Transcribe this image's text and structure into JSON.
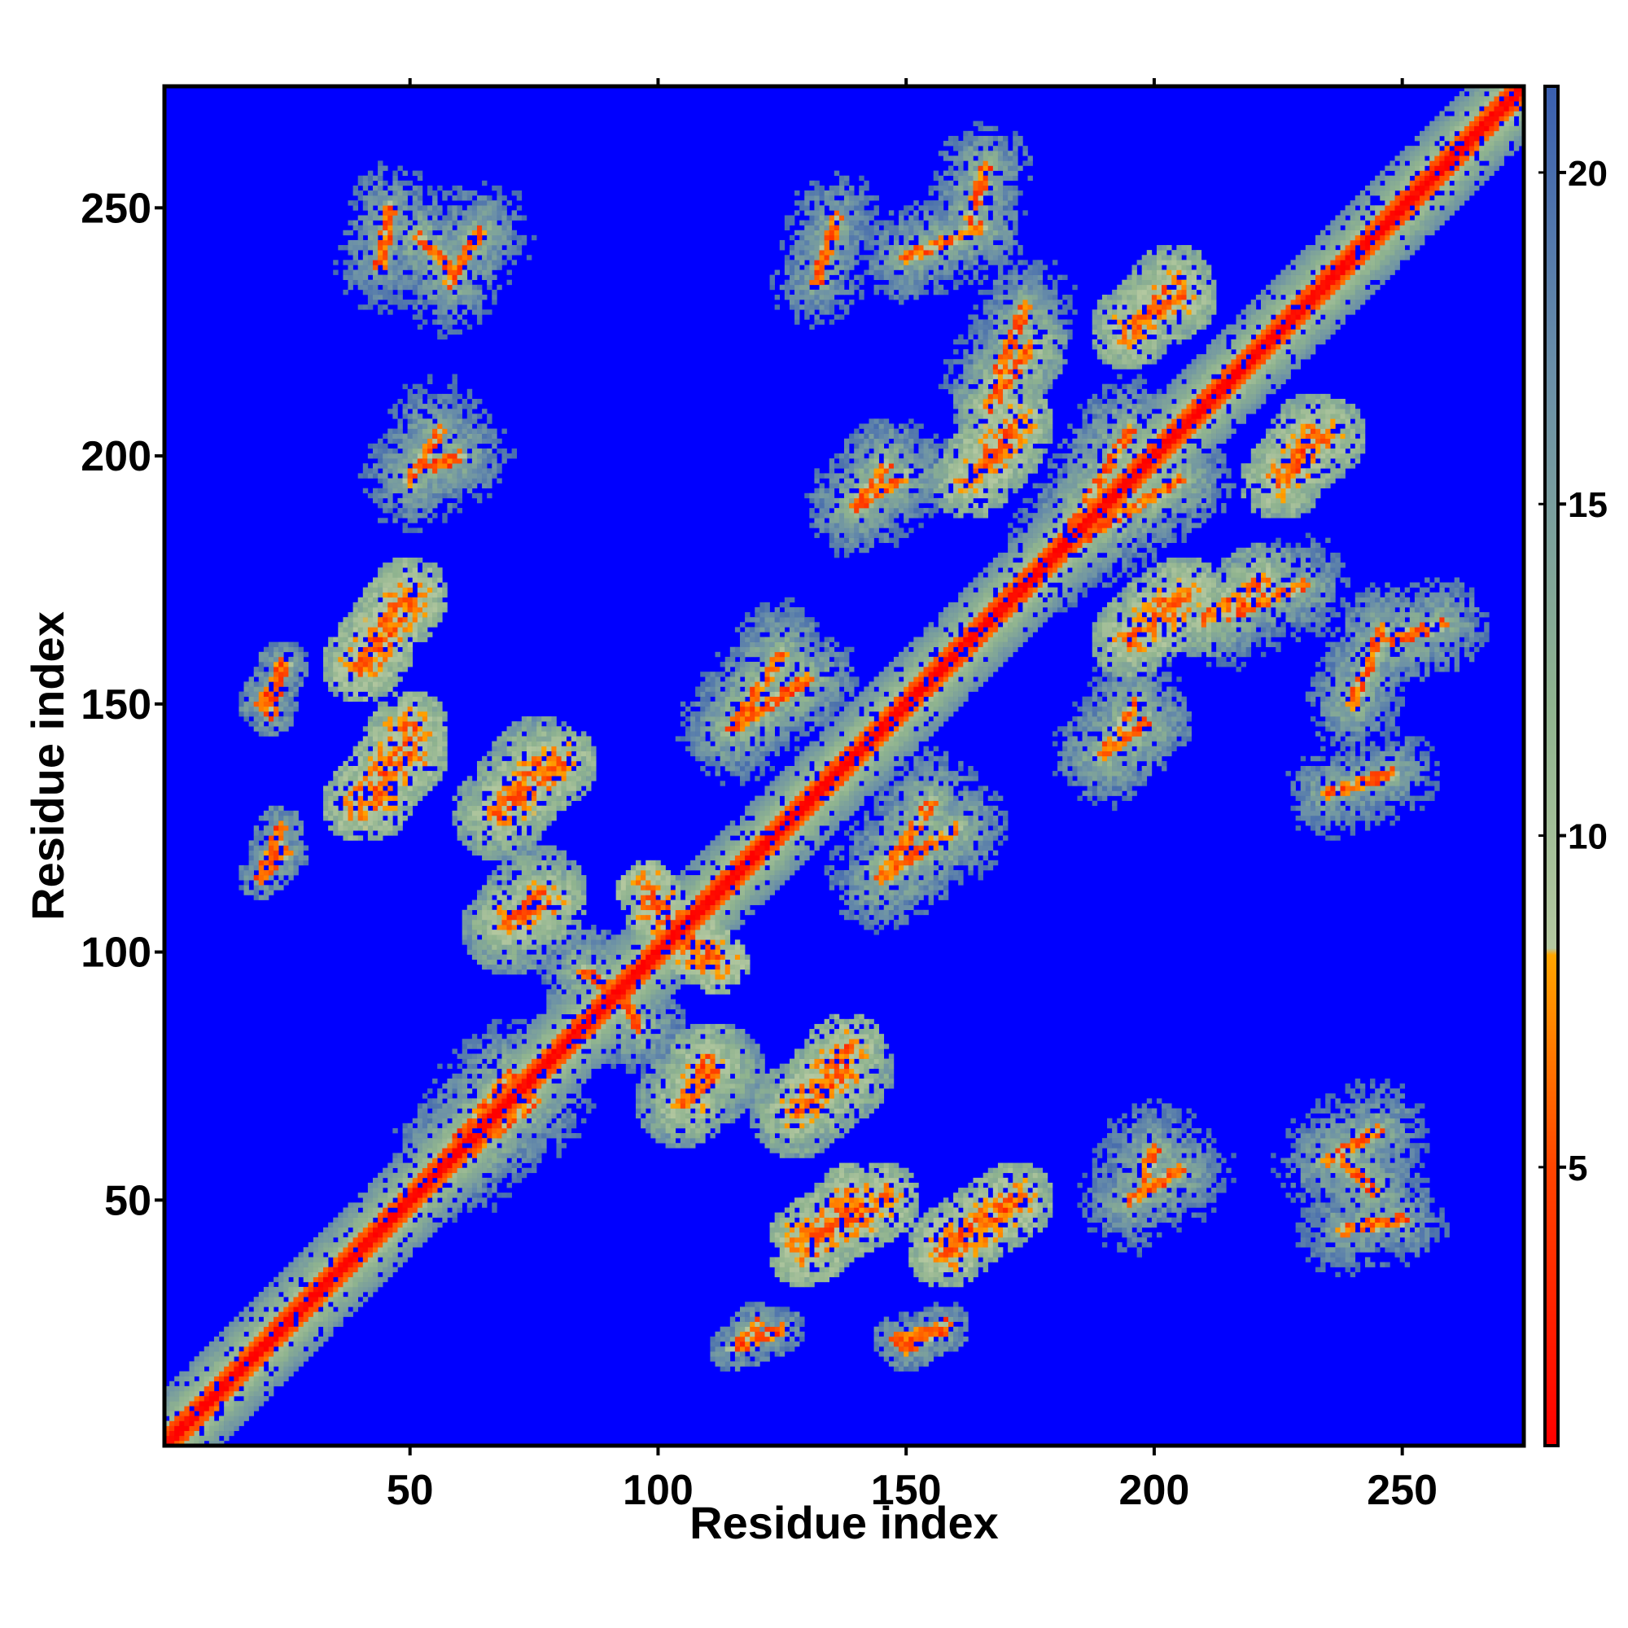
{
  "chart_data": {
    "type": "heatmap",
    "title": "",
    "xlabel": "Residue index",
    "ylabel": "Residue index",
    "n_residues": 274,
    "xlim": [
      1,
      274
    ],
    "ylim": [
      1,
      274
    ],
    "x_ticks": [
      50,
      100,
      150,
      200,
      250
    ],
    "y_ticks": [
      50,
      100,
      150,
      200,
      250
    ],
    "x_tick_labels": [
      "50",
      "100",
      "150",
      "200",
      "250"
    ],
    "y_tick_labels": [
      "50",
      "100",
      "150",
      "200",
      "250"
    ],
    "colorbar": {
      "range": [
        0.8,
        21.3
      ],
      "ticks": [
        5,
        10,
        15,
        20
      ],
      "tick_labels": [
        "5",
        "10",
        "15",
        "20"
      ],
      "stops": [
        {
          "value": 0.8,
          "color": "#ff0000"
        },
        {
          "value": 5.0,
          "color": "#ff4500"
        },
        {
          "value": 8.2,
          "color": "#ffa500"
        },
        {
          "value": 8.3,
          "color": "#b4c8a0"
        },
        {
          "value": 12.0,
          "color": "#8fb38f"
        },
        {
          "value": 17.0,
          "color": "#6a8fa8"
        },
        {
          "value": 21.3,
          "color": "#3a5fb0"
        }
      ]
    },
    "cutoff_color": "#0000ff",
    "cutoff_value": 20,
    "diagonal": {
      "from": 1,
      "to": 274,
      "value": 1.5
    },
    "contact_regions": [
      {
        "x": [
          58,
          52
        ],
        "y": [
          238,
          244
        ],
        "spread": 9,
        "value": 11.5
      },
      {
        "x": [
          55,
          60
        ],
        "y": [
          198,
          200
        ],
        "spread": 8,
        "value": 12
      },
      {
        "x": [
          40,
          50
        ],
        "y": [
          158,
          172
        ],
        "spread": 5,
        "value": 6
      },
      {
        "x": [
          40,
          50
        ],
        "y": [
          130,
          140
        ],
        "spread": 5,
        "value": 6
      },
      {
        "x": [
          70,
          80
        ],
        "y": [
          130,
          138
        ],
        "spread": 5,
        "value": 6.5
      },
      {
        "x": [
          70,
          78
        ],
        "y": [
          106,
          110
        ],
        "spread": 5,
        "value": 7
      },
      {
        "x": [
          100,
          112
        ],
        "y": [
          108,
          98
        ],
        "spread": 4,
        "value": 6
      },
      {
        "x": [
          85,
          92
        ],
        "y": [
          96,
          92
        ],
        "spread": 6,
        "value": 11
      },
      {
        "x": [
          105,
          112
        ],
        "y": [
          70,
          76
        ],
        "spread": 6,
        "value": 8
      },
      {
        "x": [
          128,
          138
        ],
        "y": [
          68,
          76
        ],
        "spread": 6,
        "value": 7
      },
      {
        "x": [
          130,
          145
        ],
        "y": [
          42,
          50
        ],
        "spread": 5,
        "value": 6
      },
      {
        "x": [
          160,
          172
        ],
        "y": [
          42,
          50
        ],
        "spread": 5,
        "value": 6
      },
      {
        "x": [
          195,
          205
        ],
        "y": [
          50,
          56
        ],
        "spread": 8,
        "value": 12
      },
      {
        "x": [
          235,
          245
        ],
        "y": [
          58,
          64
        ],
        "spread": 10,
        "value": 12
      },
      {
        "x": [
          238,
          250
        ],
        "y": [
          44,
          46
        ],
        "spread": 6,
        "value": 13
      },
      {
        "x": [
          140,
          150
        ],
        "y": [
          190,
          196
        ],
        "spread": 7,
        "value": 12
      },
      {
        "x": [
          150,
          165
        ],
        "y": [
          240,
          246
        ],
        "spread": 6,
        "value": 12
      },
      {
        "x": [
          163,
          170
        ],
        "y": [
          195,
          202
        ],
        "spread": 5,
        "value": 7
      },
      {
        "x": [
          167,
          175
        ],
        "y": [
          210,
          222
        ],
        "spread": 5,
        "value": 9
      },
      {
        "x": [
          195,
          205
        ],
        "y": [
          226,
          232
        ],
        "spread": 5,
        "value": 7
      },
      {
        "x": [
          225,
          235
        ],
        "y": [
          195,
          204
        ],
        "spread": 5,
        "value": 7
      },
      {
        "x": [
          198,
          206
        ],
        "y": [
          165,
          172
        ],
        "spread": 5,
        "value": 6.5
      },
      {
        "x": [
          215,
          230
        ],
        "y": [
          168,
          174
        ],
        "spread": 7,
        "value": 12
      },
      {
        "x": [
          248,
          258
        ],
        "y": [
          163,
          166
        ],
        "spread": 6,
        "value": 12
      },
      {
        "x": [
          190,
          198
        ],
        "y": [
          140,
          146
        ],
        "spread": 6,
        "value": 11
      },
      {
        "x": [
          235,
          248
        ],
        "y": [
          132,
          136
        ],
        "spread": 6,
        "value": 13
      },
      {
        "x": [
          145,
          160
        ],
        "y": [
          115,
          125
        ],
        "spread": 7,
        "value": 11
      },
      {
        "x": [
          115,
          130
        ],
        "y": [
          145,
          155
        ],
        "spread": 7,
        "value": 11
      },
      {
        "x": [
          180,
          195
        ],
        "y": [
          180,
          205
        ],
        "spread": 7,
        "value": 11
      },
      {
        "x": [
          60,
          75
        ],
        "y": [
          58,
          70
        ],
        "spread": 8,
        "value": 11
      },
      {
        "x": [
          115,
          125
        ],
        "y": [
          20,
          24
        ],
        "spread": 3,
        "value": 14
      },
      {
        "x": [
          148,
          158
        ],
        "y": [
          22,
          24
        ],
        "spread": 3,
        "value": 14
      },
      {
        "x": [
          20,
          25
        ],
        "y": [
          150,
          158
        ],
        "spread": 3,
        "value": 14
      },
      {
        "x": [
          20,
          25
        ],
        "y": [
          115,
          120
        ],
        "spread": 3,
        "value": 14
      }
    ]
  }
}
